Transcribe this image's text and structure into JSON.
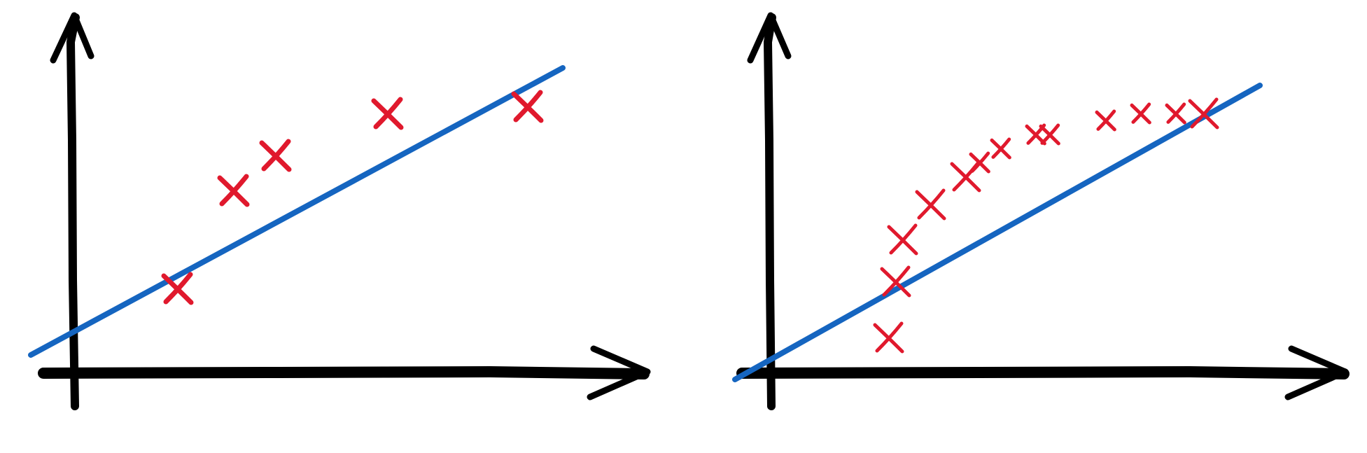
{
  "colors": {
    "axis": "#000000",
    "fit_line": "#1565c0",
    "points": "#e0192d",
    "background": "#ffffff"
  },
  "panels": [
    {
      "name": "few-points",
      "data_points": [
        [
          1.5,
          1.2
        ],
        [
          2.3,
          2.6
        ],
        [
          2.9,
          3.1
        ],
        [
          4.5,
          3.7
        ],
        [
          6.5,
          3.8
        ]
      ],
      "fit_line": [
        [
          -0.6,
          0.25
        ],
        [
          7.0,
          4.35
        ]
      ]
    },
    {
      "name": "many-points",
      "data_points": [
        [
          1.7,
          0.5
        ],
        [
          1.8,
          1.3
        ],
        [
          1.9,
          1.9
        ],
        [
          2.3,
          2.4
        ],
        [
          2.8,
          2.8
        ],
        [
          3.0,
          3.0
        ],
        [
          3.3,
          3.2
        ],
        [
          3.8,
          3.4
        ],
        [
          4.0,
          3.4
        ],
        [
          4.8,
          3.6
        ],
        [
          5.3,
          3.7
        ],
        [
          5.8,
          3.7
        ],
        [
          6.2,
          3.7
        ]
      ],
      "fit_line": [
        [
          -0.5,
          -0.1
        ],
        [
          7.0,
          4.1
        ]
      ]
    }
  ]
}
